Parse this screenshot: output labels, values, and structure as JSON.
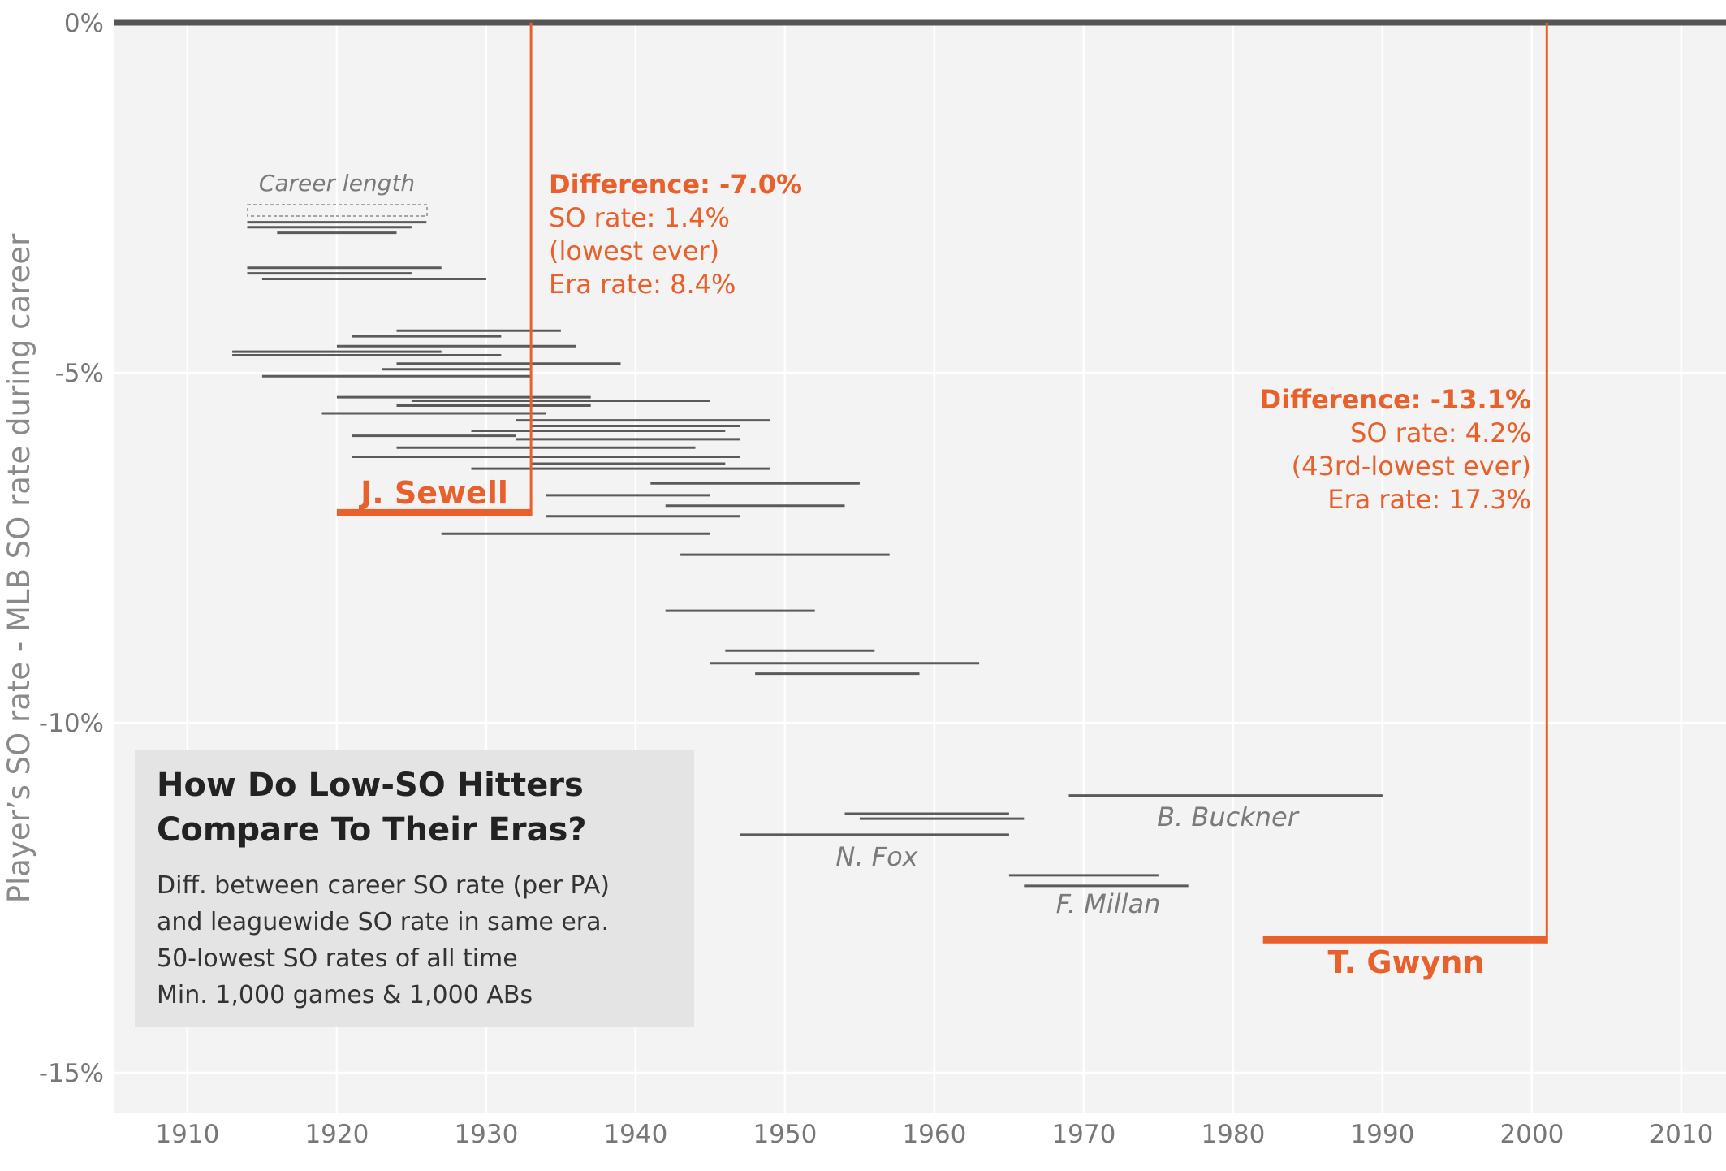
{
  "chart_data": {
    "type": "range-line",
    "title_lines": [
      "How Do Low-SO Hitters",
      "Compare To Their Eras?"
    ],
    "subtitle_lines": [
      "Diff. between career SO rate (per PA)",
      "and leaguewide SO rate in same era.",
      "50-lowest SO rates of all time",
      "Min. 1,000 games & 1,000 ABs"
    ],
    "ylabel": "Player’s SO rate - MLB SO rate during career",
    "xlim": [
      1905,
      2012
    ],
    "ylim": [
      -15.5,
      0
    ],
    "x_ticks": [
      1910,
      1920,
      1930,
      1940,
      1950,
      1960,
      1970,
      1980,
      1990,
      2000,
      2010
    ],
    "y_ticks": [
      {
        "value": 0,
        "label": "0%"
      },
      {
        "value": -5,
        "label": "-5%"
      },
      {
        "value": -10,
        "label": "-10%"
      },
      {
        "value": -15,
        "label": "-15%"
      }
    ],
    "career_length_note": "Career length",
    "series": [
      {
        "start": 1914,
        "end": 1926,
        "diff": -2.85
      },
      {
        "start": 1914,
        "end": 1925,
        "diff": -2.92
      },
      {
        "start": 1916,
        "end": 1924,
        "diff": -3.0
      },
      {
        "start": 1914,
        "end": 1927,
        "diff": -3.5
      },
      {
        "start": 1914,
        "end": 1925,
        "diff": -3.58
      },
      {
        "start": 1915,
        "end": 1930,
        "diff": -3.66
      },
      {
        "start": 1924,
        "end": 1935,
        "diff": -4.4
      },
      {
        "start": 1921,
        "end": 1931,
        "diff": -4.48
      },
      {
        "start": 1920,
        "end": 1936,
        "diff": -4.62
      },
      {
        "start": 1913,
        "end": 1927,
        "diff": -4.7
      },
      {
        "start": 1913,
        "end": 1931,
        "diff": -4.75
      },
      {
        "start": 1924,
        "end": 1939,
        "diff": -4.87
      },
      {
        "start": 1923,
        "end": 1933,
        "diff": -4.95
      },
      {
        "start": 1915,
        "end": 1933,
        "diff": -5.05
      },
      {
        "start": 1920,
        "end": 1937,
        "diff": -5.35
      },
      {
        "start": 1925,
        "end": 1945,
        "diff": -5.4
      },
      {
        "start": 1924,
        "end": 1937,
        "diff": -5.47
      },
      {
        "start": 1919,
        "end": 1934,
        "diff": -5.58
      },
      {
        "start": 1932,
        "end": 1949,
        "diff": -5.68
      },
      {
        "start": 1933,
        "end": 1947,
        "diff": -5.76
      },
      {
        "start": 1929,
        "end": 1946,
        "diff": -5.83
      },
      {
        "start": 1921,
        "end": 1932,
        "diff": -5.9
      },
      {
        "start": 1932,
        "end": 1947,
        "diff": -5.95
      },
      {
        "start": 1924,
        "end": 1944,
        "diff": -6.07
      },
      {
        "start": 1921,
        "end": 1947,
        "diff": -6.2
      },
      {
        "start": 1933,
        "end": 1946,
        "diff": -6.3
      },
      {
        "start": 1929,
        "end": 1949,
        "diff": -6.37
      },
      {
        "start": 1941,
        "end": 1955,
        "diff": -6.58
      },
      {
        "start": 1934,
        "end": 1945,
        "diff": -6.75
      },
      {
        "start": 1942,
        "end": 1954,
        "diff": -6.9
      },
      {
        "start": 1934,
        "end": 1947,
        "diff": -7.05
      },
      {
        "start": 1927,
        "end": 1945,
        "diff": -7.3
      },
      {
        "start": 1943,
        "end": 1957,
        "diff": -7.6
      },
      {
        "start": 1942,
        "end": 1952,
        "diff": -8.4
      },
      {
        "start": 1946,
        "end": 1956,
        "diff": -8.97
      },
      {
        "start": 1945,
        "end": 1963,
        "diff": -9.15
      },
      {
        "start": 1948,
        "end": 1959,
        "diff": -9.3
      },
      {
        "start": 1969,
        "end": 1990,
        "diff": -11.04
      },
      {
        "start": 1954,
        "end": 1965,
        "diff": -11.3
      },
      {
        "start": 1955,
        "end": 1966,
        "diff": -11.37
      },
      {
        "start": 1947,
        "end": 1965,
        "diff": -11.6
      },
      {
        "start": 1965,
        "end": 1975,
        "diff": -12.18
      },
      {
        "start": 1966,
        "end": 1977,
        "diff": -12.33
      }
    ],
    "highlights": [
      {
        "name": "J. Sewell",
        "start": 1920,
        "end": 1933,
        "diff": -7.0,
        "callout": [
          "Difference: -7.0%",
          "SO rate: 1.4%",
          "(lowest ever)",
          "Era rate: 8.4%"
        ]
      },
      {
        "name": "T. Gwynn",
        "start": 1982,
        "end": 2001,
        "diff": -13.1,
        "callout": [
          "Difference: -13.1%",
          "SO rate: 4.2%",
          "(43rd-lowest ever)",
          "Era rate: 17.3%"
        ]
      }
    ],
    "annotations": [
      "B. Buckner",
      "N. Fox",
      "F. Millan"
    ],
    "colors": {
      "background": "#f3f3f3",
      "series": "#5a5a5a",
      "highlight": "#e8602c",
      "zero_line": "#555555",
      "title_box": "#e4e4e4"
    }
  }
}
